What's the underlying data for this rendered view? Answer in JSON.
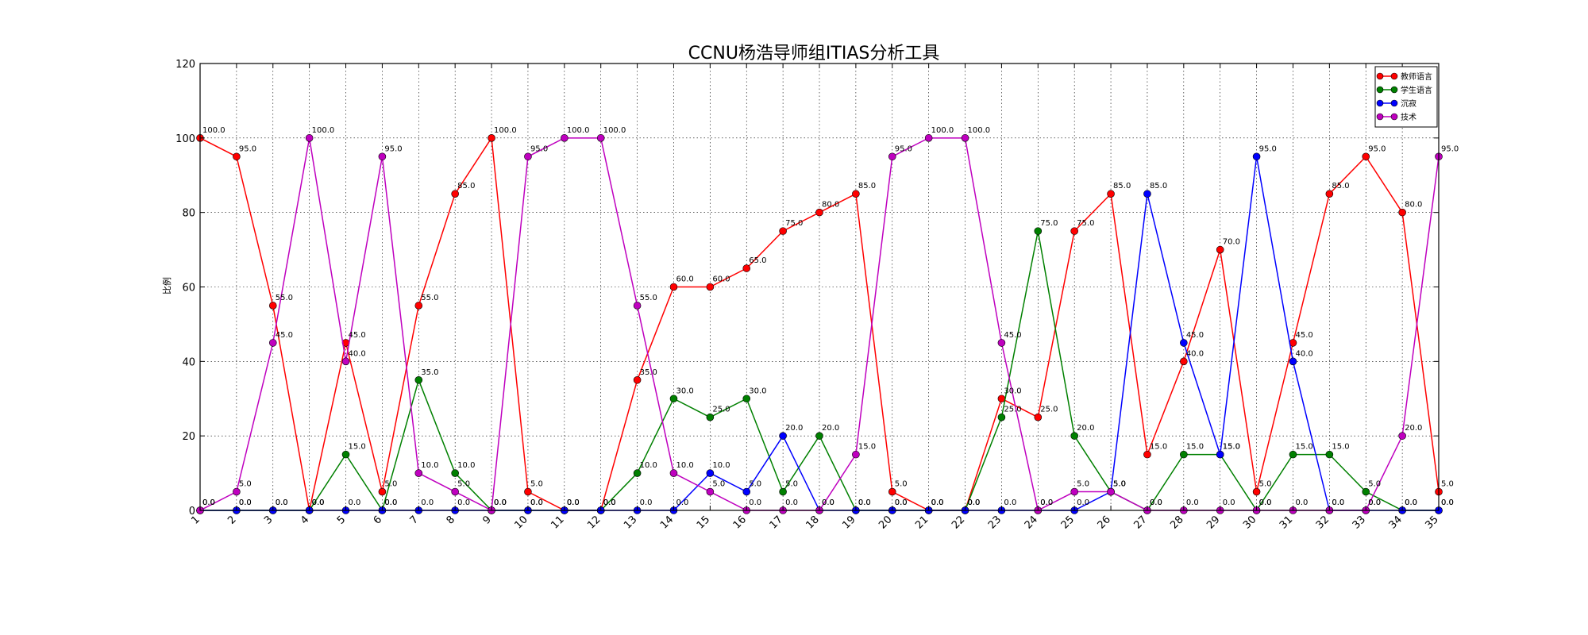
{
  "chart_data": {
    "type": "line",
    "title": "CCNU杨浩导师组ITIAS分析工具",
    "xlabel": "",
    "ylabel": "比例",
    "ylim": [
      0,
      120
    ],
    "yticks": [
      0,
      20,
      40,
      60,
      80,
      100,
      120
    ],
    "x": [
      1,
      2,
      3,
      4,
      5,
      6,
      7,
      8,
      9,
      10,
      11,
      12,
      13,
      14,
      15,
      16,
      17,
      18,
      19,
      20,
      21,
      22,
      23,
      24,
      25,
      26,
      27,
      28,
      29,
      30,
      31,
      32,
      33,
      34,
      35
    ],
    "xlim": [
      1,
      35
    ],
    "grid": true,
    "legend_position": "top-right",
    "series": [
      {
        "name": "教师语言",
        "color": "#ff0000",
        "values": [
          100,
          95,
          55,
          0,
          45,
          5,
          55,
          85,
          100,
          5,
          0,
          0,
          35,
          60,
          60,
          65,
          75,
          80,
          85,
          5,
          0,
          0,
          30,
          25,
          75,
          85,
          15,
          40,
          70,
          5,
          45,
          85,
          95,
          80,
          5
        ]
      },
      {
        "name": "学生语言",
        "color": "#008000",
        "values": [
          0,
          0,
          0,
          0,
          15,
          0,
          35,
          10,
          0,
          0,
          0,
          0,
          10,
          30,
          25,
          30,
          5,
          20,
          0,
          0,
          0,
          0,
          25,
          75,
          20,
          5,
          0,
          15,
          15,
          0,
          15,
          15,
          5,
          0,
          0
        ]
      },
      {
        "name": "沉寂",
        "color": "#0000ff",
        "values": [
          0,
          0,
          0,
          0,
          0,
          0,
          0,
          0,
          0,
          0,
          0,
          0,
          0,
          0,
          10,
          5,
          20,
          0,
          0,
          0,
          0,
          0,
          0,
          0,
          0,
          5,
          85,
          45,
          15,
          95,
          40,
          0,
          0,
          0,
          0
        ]
      },
      {
        "name": "技术",
        "color": "#bf00bf",
        "values": [
          0,
          5,
          45,
          100,
          40,
          95,
          10,
          5,
          0,
          95,
          100,
          100,
          55,
          10,
          5,
          0,
          0,
          0,
          15,
          95,
          100,
          100,
          45,
          0,
          5,
          5,
          0,
          0,
          0,
          0,
          0,
          0,
          0,
          20,
          95
        ]
      }
    ]
  }
}
